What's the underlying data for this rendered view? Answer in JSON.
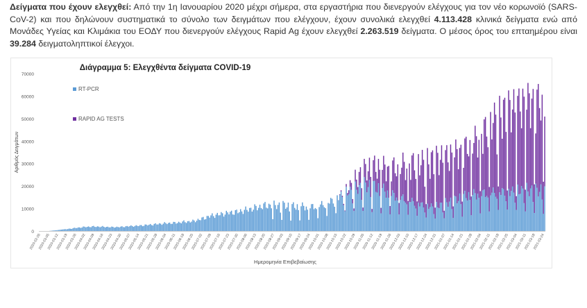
{
  "intro": {
    "heading": "Δείγματα που έχουν ελεγχθεί:",
    "t1": " Από την 1η Ιανουαρίου 2020 μέχρι σήμερα, στα εργαστήρια που διενεργούν ελέγχους για τον νέο κορωνοϊό (SARS-CoV-2) και που δηλώνουν συστηματικά το σύνολο των δειγμάτων που ελέγχουν, έχουν συνολικά ελεγχθεί ",
    "pcr_total": "4.113.428",
    "t2": " κλινικά δείγματα ενώ από Μονάδες Υγείας και Κλιμάκια του ΕΟΔΥ που διενεργούν ελέγχους Rapid Ag έχουν ελεγχθεί ",
    "rapid_total": "2.263.519",
    "t3": " δείγματα. Ο μέσος όρος του επταημέρου είναι ",
    "avg": "39.284",
    "t4": " δειγματοληπτικοί έλεγχοι."
  },
  "colors": {
    "pcr": "#5b9bd5",
    "rapid": "#7030a0",
    "text": "#333333",
    "grid": "#e0e0e0"
  },
  "chart_data": {
    "type": "bar",
    "stacked": true,
    "title": "Διάγραμμα 5: Ελεγχθέντα δείγματα COVID-19",
    "xlabel": "Ημερομηνία Επιβεβαίωσης",
    "ylabel": "Αριθμός Δειγμάτων",
    "ylim": [
      0,
      70000
    ],
    "yticks": [
      0,
      10000,
      20000,
      30000,
      40000,
      50000,
      60000,
      70000
    ],
    "grid": false,
    "legend_position": "top-left",
    "x_range": [
      "2020-02-26",
      "2021-03-24"
    ],
    "x_ticks": [
      "2020-02-26",
      "2020-03-05",
      "2020-03-12",
      "2020-03-19",
      "2020-03-26",
      "2020-04-02",
      "2020-04-09",
      "2020-04-16",
      "2020-04-23",
      "2020-04-30",
      "2020-05-07",
      "2020-05-14",
      "2020-05-21",
      "2020-05-28",
      "2020-06-04",
      "2020-06-11",
      "2020-06-18",
      "2020-06-25",
      "2020-07-02",
      "2020-07-09",
      "2020-07-16",
      "2020-07-23",
      "2020-07-30",
      "2020-08-06",
      "2020-08-13",
      "2020-08-20",
      "2020-08-27",
      "2020-09-03",
      "2020-09-10",
      "2020-09-17",
      "2020-09-24",
      "2020-10-01",
      "2020-10-08",
      "2020-10-15",
      "2020-10-22",
      "2020-10-29",
      "2020-11-05",
      "2020-11-12",
      "2020-11-19",
      "2020-11-26",
      "2020-12-03",
      "2020-12-10",
      "2020-12-17",
      "2020-12-24",
      "2020-12-31",
      "2021-01-07",
      "2021-01-14",
      "2021-01-21",
      "2021-01-28",
      "2021-02-04",
      "2021-02-11",
      "2021-02-18",
      "2021-02-25",
      "2021-03-04",
      "2021-03-11",
      "2021-03-18",
      "2021-03-24"
    ],
    "series": [
      {
        "name": "RT-PCR",
        "weekly_profile": [
          0,
          0,
          400,
          900,
          1500,
          2000,
          2200,
          2100,
          1900,
          2000,
          2400,
          2600,
          3000,
          3400,
          3800,
          4000,
          4500,
          4800,
          6000,
          7500,
          8200,
          9000,
          9500,
          10500,
          11500,
          12500,
          12800,
          13000,
          12500,
          12500,
          12200,
          13000,
          14500,
          17000,
          19500,
          21000,
          23000,
          22500,
          21000,
          18500,
          17000,
          15500,
          14000,
          12500,
          12500,
          14000,
          15500,
          17500,
          18500,
          19000,
          19500,
          20000,
          20000,
          20500,
          20500,
          20500,
          20500
        ]
      },
      {
        "name": "RAPID AG TESTS",
        "weekly_profile": [
          0,
          0,
          0,
          0,
          0,
          0,
          0,
          0,
          0,
          0,
          0,
          0,
          0,
          0,
          0,
          0,
          0,
          0,
          0,
          0,
          0,
          0,
          0,
          0,
          0,
          0,
          0,
          0,
          0,
          0,
          0,
          0,
          0,
          0,
          1000,
          4000,
          6500,
          8500,
          9500,
          11500,
          14000,
          16000,
          17500,
          19000,
          20000,
          19500,
          20000,
          20500,
          22500,
          26000,
          30000,
          33000,
          35000,
          36000,
          38000,
          39000,
          38000
        ]
      }
    ]
  }
}
